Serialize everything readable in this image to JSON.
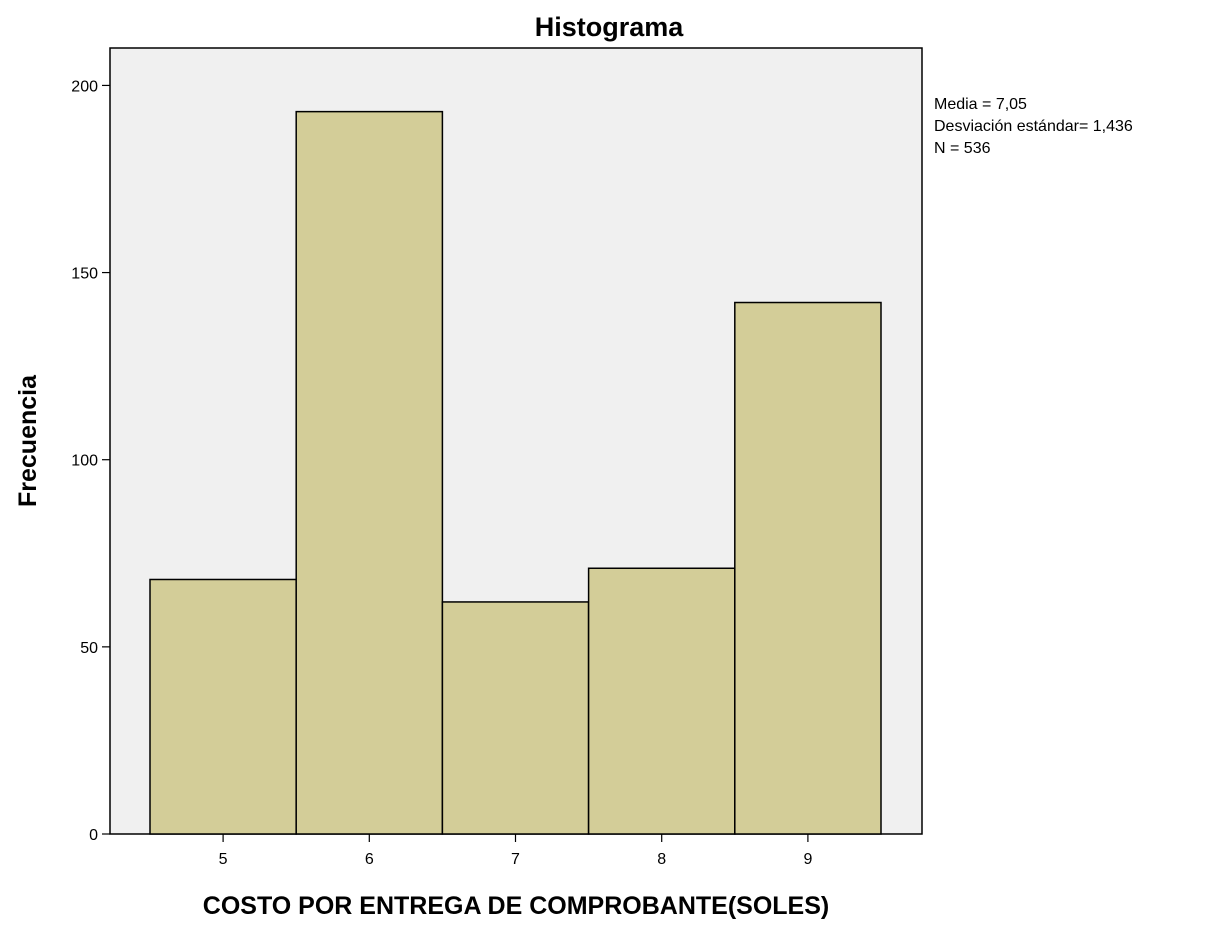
{
  "chart_data": {
    "type": "bar",
    "title": "Histograma",
    "xlabel": "COSTO POR  ENTREGA DE COMPROBANTE(SOLES)",
    "ylabel": "Frecuencia",
    "categories": [
      "5",
      "6",
      "7",
      "8",
      "9"
    ],
    "values": [
      68,
      193,
      62,
      71,
      142
    ],
    "ylim": [
      0,
      210
    ],
    "yticks": [
      "0",
      "50",
      "100",
      "150",
      "200"
    ],
    "grid": false,
    "legend": "none",
    "bar_color": "#d3cd98",
    "bar_edge_color": "#000000",
    "plot_background": "#f0f0f0",
    "stats": [
      "Media = 7,05",
      "Desviación estándar= 1,436",
      "N = 536"
    ]
  }
}
